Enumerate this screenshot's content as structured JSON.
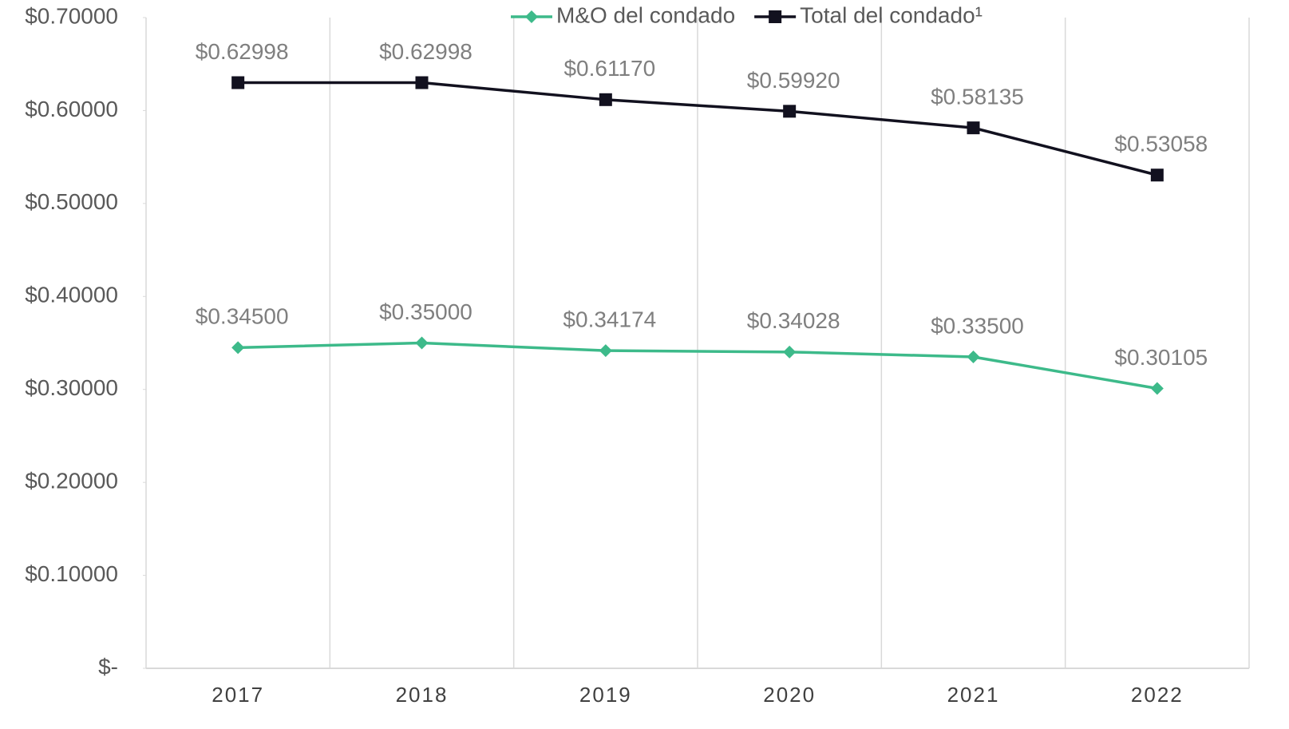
{
  "chart_data": {
    "type": "line",
    "categories": [
      "2017",
      "2018",
      "2019",
      "2020",
      "2021",
      "2022"
    ],
    "series": [
      {
        "name": "M&O del condado",
        "color": "#3dba8a",
        "marker": "diamond",
        "values": [
          0.345,
          0.35,
          0.34174,
          0.34028,
          0.335,
          0.30105
        ],
        "value_labels": [
          "$0.34500",
          "$0.35000",
          "$0.34174",
          "$0.34028",
          "$0.33500",
          "$0.30105"
        ]
      },
      {
        "name": "Total del condado¹",
        "color": "#12111f",
        "marker": "square",
        "values": [
          0.62998,
          0.62998,
          0.6117,
          0.5992,
          0.58135,
          0.53058
        ],
        "value_labels": [
          "$0.62998",
          "$0.62998",
          "$0.61170",
          "$0.59920",
          "$0.58135",
          "$0.53058"
        ]
      }
    ],
    "ylim": [
      0,
      0.7
    ],
    "yticks": [
      {
        "value": 0,
        "label": "$-"
      },
      {
        "value": 0.1,
        "label": "$0.10000"
      },
      {
        "value": 0.2,
        "label": "$0.20000"
      },
      {
        "value": 0.3,
        "label": "$0.30000"
      },
      {
        "value": 0.4,
        "label": "$0.40000"
      },
      {
        "value": 0.5,
        "label": "$0.50000"
      },
      {
        "value": 0.6,
        "label": "$0.60000"
      },
      {
        "value": 0.7,
        "label": "$0.70000"
      }
    ],
    "legend": "top"
  }
}
